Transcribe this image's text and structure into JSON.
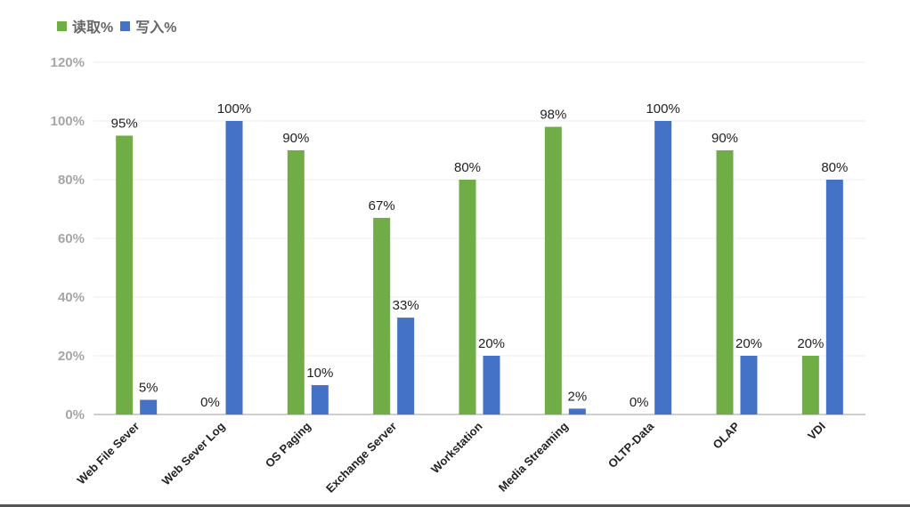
{
  "chart_data": {
    "type": "bar",
    "title": "",
    "xlabel": "",
    "ylabel": "",
    "categories": [
      "Web File Sever",
      "Web Sever Log",
      "OS Paging",
      "Exchange Server",
      "Workstation",
      "Media Streaming",
      "OLTP-Data",
      "OLAP",
      "VDI"
    ],
    "series": [
      {
        "name": "读取%",
        "color": "#70ad47",
        "values": [
          95,
          0,
          90,
          67,
          80,
          98,
          0,
          90,
          20
        ]
      },
      {
        "name": "写入%",
        "color": "#4472c4",
        "values": [
          5,
          100,
          10,
          33,
          20,
          2,
          100,
          20,
          80
        ]
      }
    ],
    "ylim": [
      0,
      120
    ],
    "yticks": [
      0,
      20,
      40,
      60,
      80,
      100,
      120
    ],
    "ytick_labels": [
      "0%",
      "20%",
      "40%",
      "60%",
      "80%",
      "100%",
      "120%"
    ],
    "value_suffix": "%",
    "grid": true,
    "legend": "top-left"
  }
}
